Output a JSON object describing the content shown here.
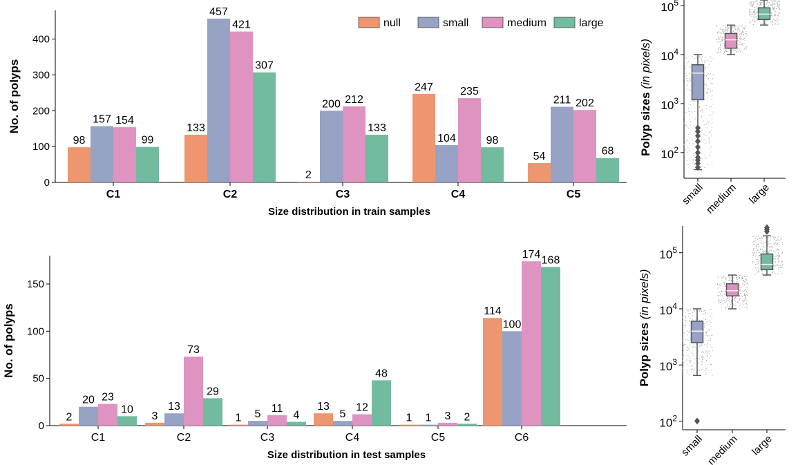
{
  "chart_data": [
    {
      "id": "train_bar",
      "type": "bar",
      "title": "",
      "xlabel": "Size distribution in train samples",
      "ylabel": "No. of polyps",
      "ylim": [
        0,
        480
      ],
      "yticks": [
        0,
        100,
        200,
        300,
        400
      ],
      "categories": [
        "C1",
        "C2",
        "C3",
        "C4",
        "C5"
      ],
      "legend_position": "top-right",
      "series": [
        {
          "name": "null",
          "color": "#ed9670",
          "values": [
            98,
            133,
            2,
            247,
            54
          ]
        },
        {
          "name": "small",
          "color": "#96a3c5",
          "values": [
            157,
            457,
            200,
            104,
            211
          ]
        },
        {
          "name": "medium",
          "color": "#de93c0",
          "values": [
            154,
            421,
            212,
            235,
            202
          ]
        },
        {
          "name": "large",
          "color": "#72bb9f",
          "values": [
            99,
            307,
            133,
            98,
            68
          ]
        }
      ]
    },
    {
      "id": "test_bar",
      "type": "bar",
      "title": "",
      "xlabel": "Size distribution in test samples",
      "ylabel": "No. of polyps",
      "ylim": [
        0,
        180
      ],
      "yticks": [
        0,
        50,
        100,
        150
      ],
      "categories": [
        "C1",
        "C2",
        "C3",
        "C4",
        "C5",
        "C6"
      ],
      "series": [
        {
          "name": "null",
          "color": "#ed9670",
          "values": [
            2,
            3,
            1,
            13,
            1,
            114
          ]
        },
        {
          "name": "small",
          "color": "#96a3c5",
          "values": [
            20,
            13,
            5,
            5,
            1,
            100
          ]
        },
        {
          "name": "medium",
          "color": "#de93c0",
          "values": [
            23,
            73,
            11,
            12,
            3,
            174
          ]
        },
        {
          "name": "large",
          "color": "#72bb9f",
          "values": [
            10,
            29,
            4,
            48,
            2,
            168
          ]
        }
      ]
    },
    {
      "id": "train_box",
      "type": "box",
      "ylabel_main": "Polyp sizes",
      "ylabel_italic": "(in pixels)",
      "yscale": "log",
      "ylim": [
        30,
        130000
      ],
      "yticks": [
        100,
        1000,
        10000,
        100000
      ],
      "ytick_labels": [
        {
          "base": "10",
          "exp": "2"
        },
        {
          "base": "10",
          "exp": "3"
        },
        {
          "base": "10",
          "exp": "4"
        },
        {
          "base": "10",
          "exp": "5"
        }
      ],
      "categories": [
        "small",
        "medium",
        "large"
      ],
      "boxes": [
        {
          "name": "small",
          "color": "#96a3c5",
          "whisker_low": 45,
          "q1": 1200,
          "median": 4200,
          "q3": 6200,
          "whisker_high": 10000,
          "outliers": [
            50,
            60,
            70,
            80,
            100,
            130,
            170,
            220,
            270,
            320
          ]
        },
        {
          "name": "medium",
          "color": "#de93c0",
          "whisker_low": 10000,
          "q1": 13500,
          "median": 20000,
          "q3": 27000,
          "whisker_high": 40000,
          "outliers": []
        },
        {
          "name": "large",
          "color": "#72bb9f",
          "whisker_low": 40000,
          "q1": 52000,
          "median": 67000,
          "q3": 90000,
          "whisker_high": 130000,
          "outliers": []
        }
      ]
    },
    {
      "id": "test_box",
      "type": "box",
      "ylabel_main": "Polyp sizes",
      "ylabel_italic": "(in pixels)",
      "yscale": "log",
      "ylim": [
        70,
        300000
      ],
      "yticks": [
        100,
        1000,
        10000,
        100000
      ],
      "ytick_labels": [
        {
          "base": "10",
          "exp": "2"
        },
        {
          "base": "10",
          "exp": "3"
        },
        {
          "base": "10",
          "exp": "4"
        },
        {
          "base": "10",
          "exp": "5"
        }
      ],
      "categories": [
        "small",
        "medium",
        "large"
      ],
      "boxes": [
        {
          "name": "small",
          "color": "#96a3c5",
          "whisker_low": 650,
          "q1": 2500,
          "median": 4000,
          "q3": 6000,
          "whisker_high": 10000,
          "outliers": [
            100
          ]
        },
        {
          "name": "medium",
          "color": "#de93c0",
          "whisker_low": 10000,
          "q1": 17000,
          "median": 21000,
          "q3": 28000,
          "whisker_high": 40000,
          "outliers": []
        },
        {
          "name": "large",
          "color": "#72bb9f",
          "whisker_low": 40000,
          "q1": 50000,
          "median": 62000,
          "q3": 95000,
          "whisker_high": 200000,
          "outliers": [
            240000,
            260000,
            280000
          ]
        }
      ]
    }
  ]
}
